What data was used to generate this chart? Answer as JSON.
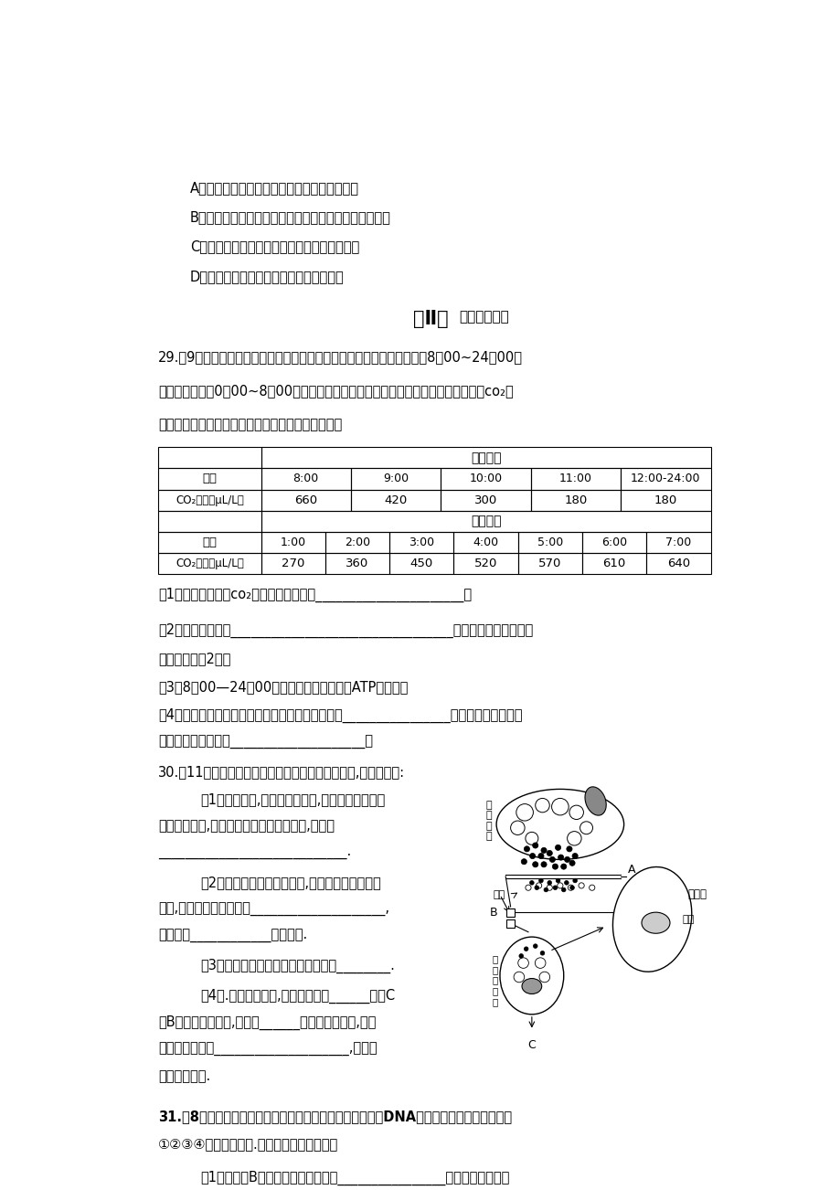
{
  "bg_color": "#ffffff",
  "page_width": 9.2,
  "page_height": 13.02,
  "options": [
    "A．菜青虫能消除芥子油苷及其代谢产物的毒性",
    "B．用芥子油苷诱杀雌性菜粉蝶，可诱导产生抗性突变体",
    "C．芥子油苷可能会吸引菜青虫的天敌前来捕食",
    "D．十字花科植物和菜粉蝶发生了共同进化"
  ],
  "table_light_header": "光照阶段",
  "table_dark_header": "黑暗阶段",
  "table_light_times": [
    "8:00",
    "9:00",
    "10:00",
    "11:00",
    "12:00-24:00"
  ],
  "table_light_co2": [
    "660",
    "420",
    "300",
    "180",
    "180"
  ],
  "table_dark_times": [
    "1:00",
    "2:00",
    "3:00",
    "4:00",
    "5:00",
    "6:00",
    "7:00"
  ],
  "table_dark_co2": [
    "270",
    "360",
    "450",
    "520",
    "570",
    "610",
    "640"
  ]
}
